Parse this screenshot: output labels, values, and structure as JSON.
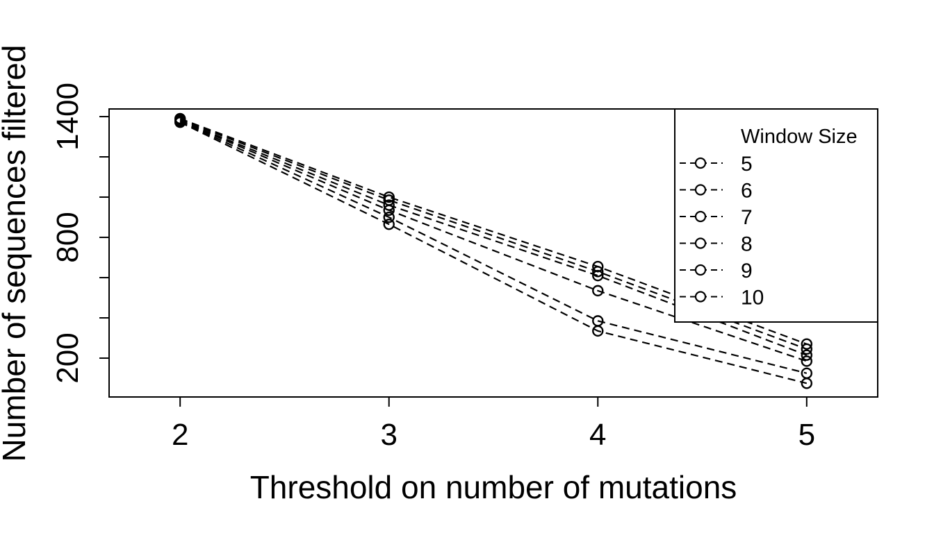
{
  "chart_data": {
    "type": "line",
    "title": "",
    "xlabel": "Threshold on number of mutations",
    "ylabel": "Number of sequences filtered",
    "x": [
      2,
      3,
      4,
      5
    ],
    "x_tick_labels": [
      "2",
      "3",
      "4",
      "5"
    ],
    "y_tick_values": [
      200,
      800,
      1400
    ],
    "y_tick_labels": [
      "200",
      "800",
      "1400"
    ],
    "y_minor_ticks": [
      200,
      400,
      600,
      800,
      1000,
      1200,
      1400
    ],
    "xlim": [
      1.66,
      5.34
    ],
    "ylim": [
      7,
      1438
    ],
    "grid": false,
    "line_style": "dashed",
    "marker": "open-circle",
    "legend": {
      "title": "Window Size",
      "placement": "top-right"
    },
    "series": [
      {
        "name": "5",
        "values": [
          1390,
          1000,
          655,
          270
        ]
      },
      {
        "name": "6",
        "values": [
          1385,
          985,
          630,
          245
        ]
      },
      {
        "name": "7",
        "values": [
          1380,
          960,
          610,
          215
        ]
      },
      {
        "name": "8",
        "values": [
          1378,
          935,
          535,
          185
        ]
      },
      {
        "name": "9",
        "values": [
          1375,
          900,
          385,
          125
        ]
      },
      {
        "name": "10",
        "values": [
          1372,
          865,
          335,
          75
        ]
      }
    ]
  }
}
